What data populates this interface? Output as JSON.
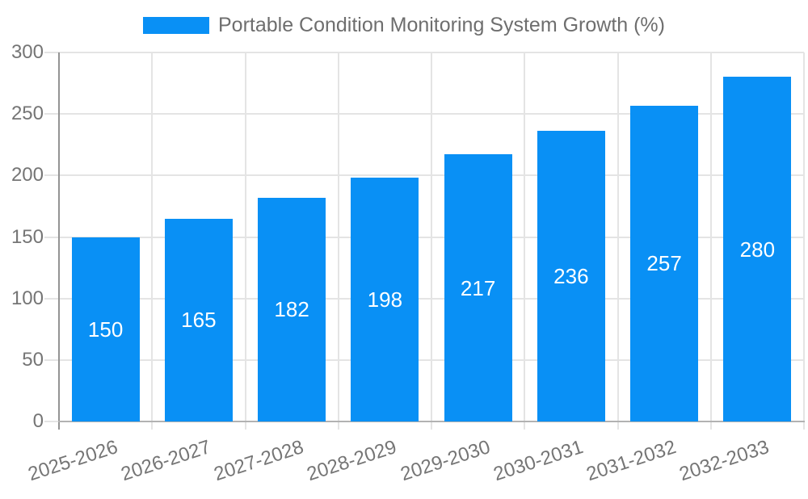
{
  "chart_data": {
    "type": "bar",
    "title": "",
    "legend": {
      "label": "Portable Condition Monitoring System Growth (%)",
      "position": "top"
    },
    "categories": [
      "2025-2026",
      "2026-2027",
      "2027-2028",
      "2028-2029",
      "2029-2030",
      "2030-2031",
      "2031-2032",
      "2032-2033"
    ],
    "values": [
      150,
      165,
      182,
      198,
      217,
      236,
      257,
      280
    ],
    "xlabel": "",
    "ylabel": "",
    "ylim": [
      0,
      300
    ],
    "yticks": [
      0,
      50,
      100,
      150,
      200,
      250,
      300
    ],
    "grid": true,
    "value_labels_inside_bars": true,
    "x_label_rotation_deg": -18,
    "colors": {
      "bar": "#0990f5",
      "value_label": "#ffffff",
      "axis_text": "#757575",
      "legend_text": "#6e6e6e",
      "gridline": "#e4e4e4",
      "axis_line": "#b2b2b2",
      "axis_line_strong": "#949494",
      "background": "#ffffff"
    }
  }
}
